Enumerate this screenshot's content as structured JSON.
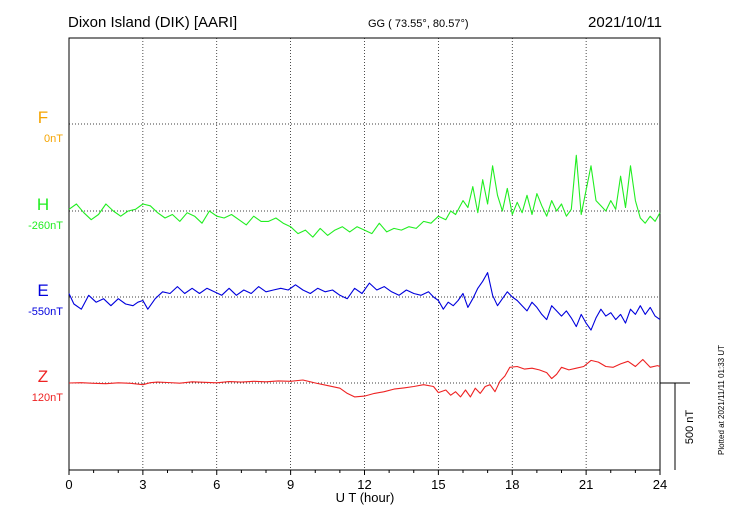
{
  "header": {
    "station": "Dixon Island (DIK)  [AARI]",
    "coords": "GG ( 73.55°,  80.57°)",
    "date": "2021/10/11"
  },
  "chart_data": {
    "type": "line",
    "xlabel": "U T (hour)",
    "xlim": [
      0,
      24
    ],
    "x_ticks": [
      "0",
      "3",
      "6",
      "9",
      "12",
      "15",
      "18",
      "21",
      "24"
    ],
    "scale_label": "500 nT",
    "plotted_note": "Plotted at 2021/11/11 01:33 UT",
    "series": [
      {
        "name": "F",
        "offset_label": "0nT",
        "color": "#f5a400",
        "points": []
      },
      {
        "name": "H",
        "offset_label": "-260nT",
        "color": "#22ee22",
        "points": [
          [
            0,
            -270
          ],
          [
            0.3,
            -300
          ],
          [
            0.6,
            -250
          ],
          [
            0.9,
            -210
          ],
          [
            1.2,
            -240
          ],
          [
            1.5,
            -300
          ],
          [
            1.8,
            -260
          ],
          [
            2.1,
            -230
          ],
          [
            2.4,
            -260
          ],
          [
            2.7,
            -270
          ],
          [
            3,
            -300
          ],
          [
            3.3,
            -290
          ],
          [
            3.6,
            -250
          ],
          [
            3.9,
            -220
          ],
          [
            4.2,
            -240
          ],
          [
            4.5,
            -200
          ],
          [
            4.8,
            -250
          ],
          [
            5.1,
            -230
          ],
          [
            5.4,
            -190
          ],
          [
            5.7,
            -260
          ],
          [
            6,
            -230
          ],
          [
            6.3,
            -220
          ],
          [
            6.6,
            -240
          ],
          [
            6.9,
            -210
          ],
          [
            7.2,
            -180
          ],
          [
            7.5,
            -230
          ],
          [
            7.8,
            -200
          ],
          [
            8.1,
            -200
          ],
          [
            8.4,
            -220
          ],
          [
            8.7,
            -190
          ],
          [
            9,
            -170
          ],
          [
            9.3,
            -130
          ],
          [
            9.6,
            -150
          ],
          [
            9.9,
            -110
          ],
          [
            10.2,
            -160
          ],
          [
            10.5,
            -120
          ],
          [
            10.8,
            -150
          ],
          [
            11.1,
            -170
          ],
          [
            11.4,
            -140
          ],
          [
            11.7,
            -170
          ],
          [
            12,
            -150
          ],
          [
            12.3,
            -130
          ],
          [
            12.6,
            -190
          ],
          [
            12.9,
            -140
          ],
          [
            13.2,
            -160
          ],
          [
            13.5,
            -150
          ],
          [
            13.8,
            -170
          ],
          [
            14.1,
            -160
          ],
          [
            14.4,
            -200
          ],
          [
            14.7,
            -190
          ],
          [
            15,
            -230
          ],
          [
            15.3,
            -210
          ],
          [
            15.5,
            -260
          ],
          [
            15.7,
            -240
          ],
          [
            16,
            -320
          ],
          [
            16.2,
            -280
          ],
          [
            16.4,
            -400
          ],
          [
            16.6,
            -250
          ],
          [
            16.8,
            -440
          ],
          [
            17,
            -300
          ],
          [
            17.2,
            -520
          ],
          [
            17.4,
            -350
          ],
          [
            17.6,
            -260
          ],
          [
            17.8,
            -390
          ],
          [
            18,
            -240
          ],
          [
            18.2,
            -310
          ],
          [
            18.4,
            -250
          ],
          [
            18.6,
            -350
          ],
          [
            18.8,
            -240
          ],
          [
            19,
            -360
          ],
          [
            19.2,
            -290
          ],
          [
            19.4,
            -230
          ],
          [
            19.6,
            -320
          ],
          [
            19.8,
            -260
          ],
          [
            20,
            -300
          ],
          [
            20.2,
            -230
          ],
          [
            20.4,
            -270
          ],
          [
            20.6,
            -580
          ],
          [
            20.8,
            -240
          ],
          [
            21,
            -380
          ],
          [
            21.2,
            -520
          ],
          [
            21.4,
            -320
          ],
          [
            21.6,
            -290
          ],
          [
            21.8,
            -260
          ],
          [
            22,
            -320
          ],
          [
            22.2,
            -270
          ],
          [
            22.4,
            -460
          ],
          [
            22.6,
            -280
          ],
          [
            22.8,
            -520
          ],
          [
            23,
            -320
          ],
          [
            23.2,
            -220
          ],
          [
            23.4,
            -190
          ],
          [
            23.6,
            -230
          ],
          [
            23.8,
            -200
          ],
          [
            24,
            -250
          ]
        ]
      },
      {
        "name": "E",
        "offset_label": "-550nT",
        "color": "#0000dd",
        "points": [
          [
            0,
            -570
          ],
          [
            0.2,
            -510
          ],
          [
            0.5,
            -480
          ],
          [
            0.8,
            -560
          ],
          [
            1.1,
            -520
          ],
          [
            1.4,
            -540
          ],
          [
            1.7,
            -500
          ],
          [
            2,
            -540
          ],
          [
            2.3,
            -510
          ],
          [
            2.6,
            -500
          ],
          [
            2.8,
            -520
          ],
          [
            3,
            -530
          ],
          [
            3.2,
            -480
          ],
          [
            3.5,
            -540
          ],
          [
            3.8,
            -580
          ],
          [
            4.1,
            -570
          ],
          [
            4.4,
            -610
          ],
          [
            4.7,
            -570
          ],
          [
            5,
            -600
          ],
          [
            5.3,
            -570
          ],
          [
            5.6,
            -600
          ],
          [
            5.9,
            -580
          ],
          [
            6.2,
            -560
          ],
          [
            6.5,
            -600
          ],
          [
            6.8,
            -560
          ],
          [
            7.1,
            -590
          ],
          [
            7.4,
            -570
          ],
          [
            7.7,
            -610
          ],
          [
            8,
            -580
          ],
          [
            8.3,
            -590
          ],
          [
            8.6,
            -600
          ],
          [
            8.9,
            -590
          ],
          [
            9.2,
            -620
          ],
          [
            9.5,
            -590
          ],
          [
            9.8,
            -570
          ],
          [
            10.1,
            -600
          ],
          [
            10.4,
            -580
          ],
          [
            10.7,
            -590
          ],
          [
            11,
            -560
          ],
          [
            11.3,
            -540
          ],
          [
            11.6,
            -600
          ],
          [
            11.9,
            -570
          ],
          [
            12.2,
            -630
          ],
          [
            12.5,
            -590
          ],
          [
            12.8,
            -610
          ],
          [
            13.1,
            -580
          ],
          [
            13.4,
            -560
          ],
          [
            13.7,
            -590
          ],
          [
            14,
            -570
          ],
          [
            14.3,
            -560
          ],
          [
            14.6,
            -580
          ],
          [
            14.8,
            -550
          ],
          [
            15,
            -530
          ],
          [
            15.2,
            -480
          ],
          [
            15.4,
            -520
          ],
          [
            15.6,
            -500
          ],
          [
            15.8,
            -530
          ],
          [
            16,
            -570
          ],
          [
            16.2,
            -490
          ],
          [
            16.4,
            -540
          ],
          [
            16.6,
            -600
          ],
          [
            16.8,
            -640
          ],
          [
            17,
            -690
          ],
          [
            17.2,
            -560
          ],
          [
            17.4,
            -500
          ],
          [
            17.6,
            -540
          ],
          [
            17.8,
            -580
          ],
          [
            18,
            -550
          ],
          [
            18.2,
            -530
          ],
          [
            18.4,
            -500
          ],
          [
            18.6,
            -470
          ],
          [
            18.8,
            -520
          ],
          [
            19,
            -490
          ],
          [
            19.2,
            -450
          ],
          [
            19.4,
            -420
          ],
          [
            19.6,
            -500
          ],
          [
            19.8,
            -470
          ],
          [
            20,
            -440
          ],
          [
            20.2,
            -470
          ],
          [
            20.4,
            -430
          ],
          [
            20.6,
            -380
          ],
          [
            20.8,
            -450
          ],
          [
            21,
            -400
          ],
          [
            21.2,
            -360
          ],
          [
            21.4,
            -430
          ],
          [
            21.6,
            -480
          ],
          [
            21.8,
            -440
          ],
          [
            22,
            -460
          ],
          [
            22.2,
            -420
          ],
          [
            22.4,
            -450
          ],
          [
            22.6,
            -400
          ],
          [
            22.8,
            -480
          ],
          [
            23,
            -450
          ],
          [
            23.2,
            -500
          ],
          [
            23.4,
            -450
          ],
          [
            23.6,
            -490
          ],
          [
            23.8,
            -440
          ],
          [
            24,
            -420
          ]
        ]
      },
      {
        "name": "Z",
        "offset_label": "120nT",
        "color": "#ee2222",
        "points": [
          [
            0,
            120
          ],
          [
            0.5,
            118
          ],
          [
            1,
            122
          ],
          [
            1.5,
            124
          ],
          [
            2,
            119
          ],
          [
            2.5,
            122
          ],
          [
            3,
            130
          ],
          [
            3.3,
            118
          ],
          [
            3.6,
            115
          ],
          [
            4,
            117
          ],
          [
            4.5,
            121
          ],
          [
            5,
            113
          ],
          [
            5.5,
            116
          ],
          [
            6,
            119
          ],
          [
            6.5,
            112
          ],
          [
            7,
            115
          ],
          [
            7.5,
            110
          ],
          [
            8,
            113
          ],
          [
            8.5,
            108
          ],
          [
            9,
            110
          ],
          [
            9.5,
            103
          ],
          [
            10,
            120
          ],
          [
            10.5,
            135
          ],
          [
            11,
            150
          ],
          [
            11.3,
            180
          ],
          [
            11.6,
            200
          ],
          [
            12,
            195
          ],
          [
            12.4,
            180
          ],
          [
            12.8,
            170
          ],
          [
            13.2,
            155
          ],
          [
            13.6,
            148
          ],
          [
            14,
            140
          ],
          [
            14.4,
            130
          ],
          [
            14.8,
            140
          ],
          [
            15,
            175
          ],
          [
            15.3,
            160
          ],
          [
            15.5,
            190
          ],
          [
            15.7,
            170
          ],
          [
            15.9,
            200
          ],
          [
            16.1,
            160
          ],
          [
            16.3,
            200
          ],
          [
            16.5,
            150
          ],
          [
            16.7,
            180
          ],
          [
            16.9,
            140
          ],
          [
            17.1,
            130
          ],
          [
            17.3,
            170
          ],
          [
            17.5,
            110
          ],
          [
            17.7,
            80
          ],
          [
            17.9,
            30
          ],
          [
            18.2,
            25
          ],
          [
            18.5,
            40
          ],
          [
            18.8,
            35
          ],
          [
            19.1,
            45
          ],
          [
            19.4,
            60
          ],
          [
            19.6,
            95
          ],
          [
            19.8,
            70
          ],
          [
            20,
            30
          ],
          [
            20.3,
            45
          ],
          [
            20.6,
            35
          ],
          [
            20.9,
            25
          ],
          [
            21.2,
            -10
          ],
          [
            21.5,
            0
          ],
          [
            21.8,
            25
          ],
          [
            22.1,
            30
          ],
          [
            22.4,
            10
          ],
          [
            22.7,
            -5
          ],
          [
            23,
            25
          ],
          [
            23.3,
            -15
          ],
          [
            23.6,
            30
          ],
          [
            23.9,
            20
          ],
          [
            24,
            25
          ]
        ]
      }
    ]
  }
}
